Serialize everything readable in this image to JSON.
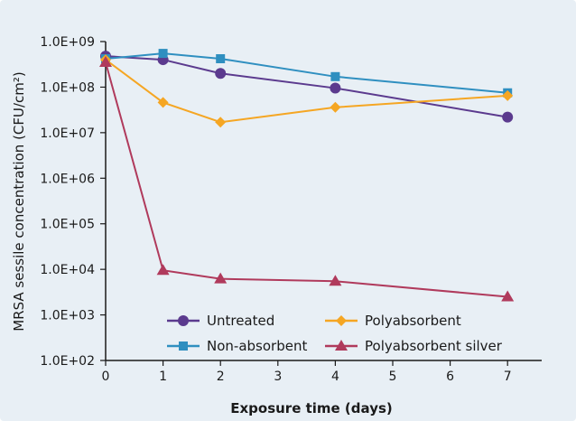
{
  "chart_data": {
    "type": "line",
    "xlabel": "Exposure time (days)",
    "ylabel": "MRSA sessile concentration (CFU/cm²)",
    "xlim": [
      0,
      7.6
    ],
    "ylim": [
      100,
      1000000000
    ],
    "yscale": "log",
    "x_ticks": [
      0,
      1,
      2,
      3,
      4,
      5,
      6,
      7
    ],
    "y_ticks": [
      100,
      1000,
      10000,
      100000,
      1000000,
      10000000,
      100000000,
      1000000000
    ],
    "y_tick_labels": [
      "1.0E+02",
      "1.0E+03",
      "1.0E+04",
      "1.0E+05",
      "1.0E+06",
      "1.0E+07",
      "1.0E+08",
      "1.0E+09"
    ],
    "x_tick_labels": [
      "0",
      "1",
      "2",
      "3",
      "4",
      "5",
      "6",
      "7"
    ],
    "grid": false,
    "legend_position": "bottom-center",
    "series": [
      {
        "name": "Untreated",
        "color": "#5b3a8e",
        "marker": "circle",
        "points": [
          [
            0,
            480000000
          ],
          [
            1,
            400000000
          ],
          [
            2,
            200000000
          ],
          [
            4,
            95000000
          ],
          [
            7,
            22000000
          ]
        ]
      },
      {
        "name": "Non-absorbent",
        "color": "#2f8fc0",
        "marker": "square",
        "points": [
          [
            0,
            420000000
          ],
          [
            1,
            550000000
          ],
          [
            2,
            420000000
          ],
          [
            4,
            170000000
          ],
          [
            7,
            75000000
          ]
        ]
      },
      {
        "name": "Polyabsorbent",
        "color": "#f5a623",
        "marker": "diamond",
        "points": [
          [
            0,
            400000000
          ],
          [
            1,
            46000000
          ],
          [
            2,
            17000000
          ],
          [
            4,
            36000000
          ],
          [
            7,
            65000000
          ]
        ]
      },
      {
        "name": "Polyabsorbent silver",
        "color": "#b03a5c",
        "marker": "triangle",
        "points": [
          [
            0,
            350000000
          ],
          [
            1,
            9500
          ],
          [
            2,
            6200
          ],
          [
            4,
            5500
          ],
          [
            7,
            2500
          ]
        ]
      }
    ]
  }
}
